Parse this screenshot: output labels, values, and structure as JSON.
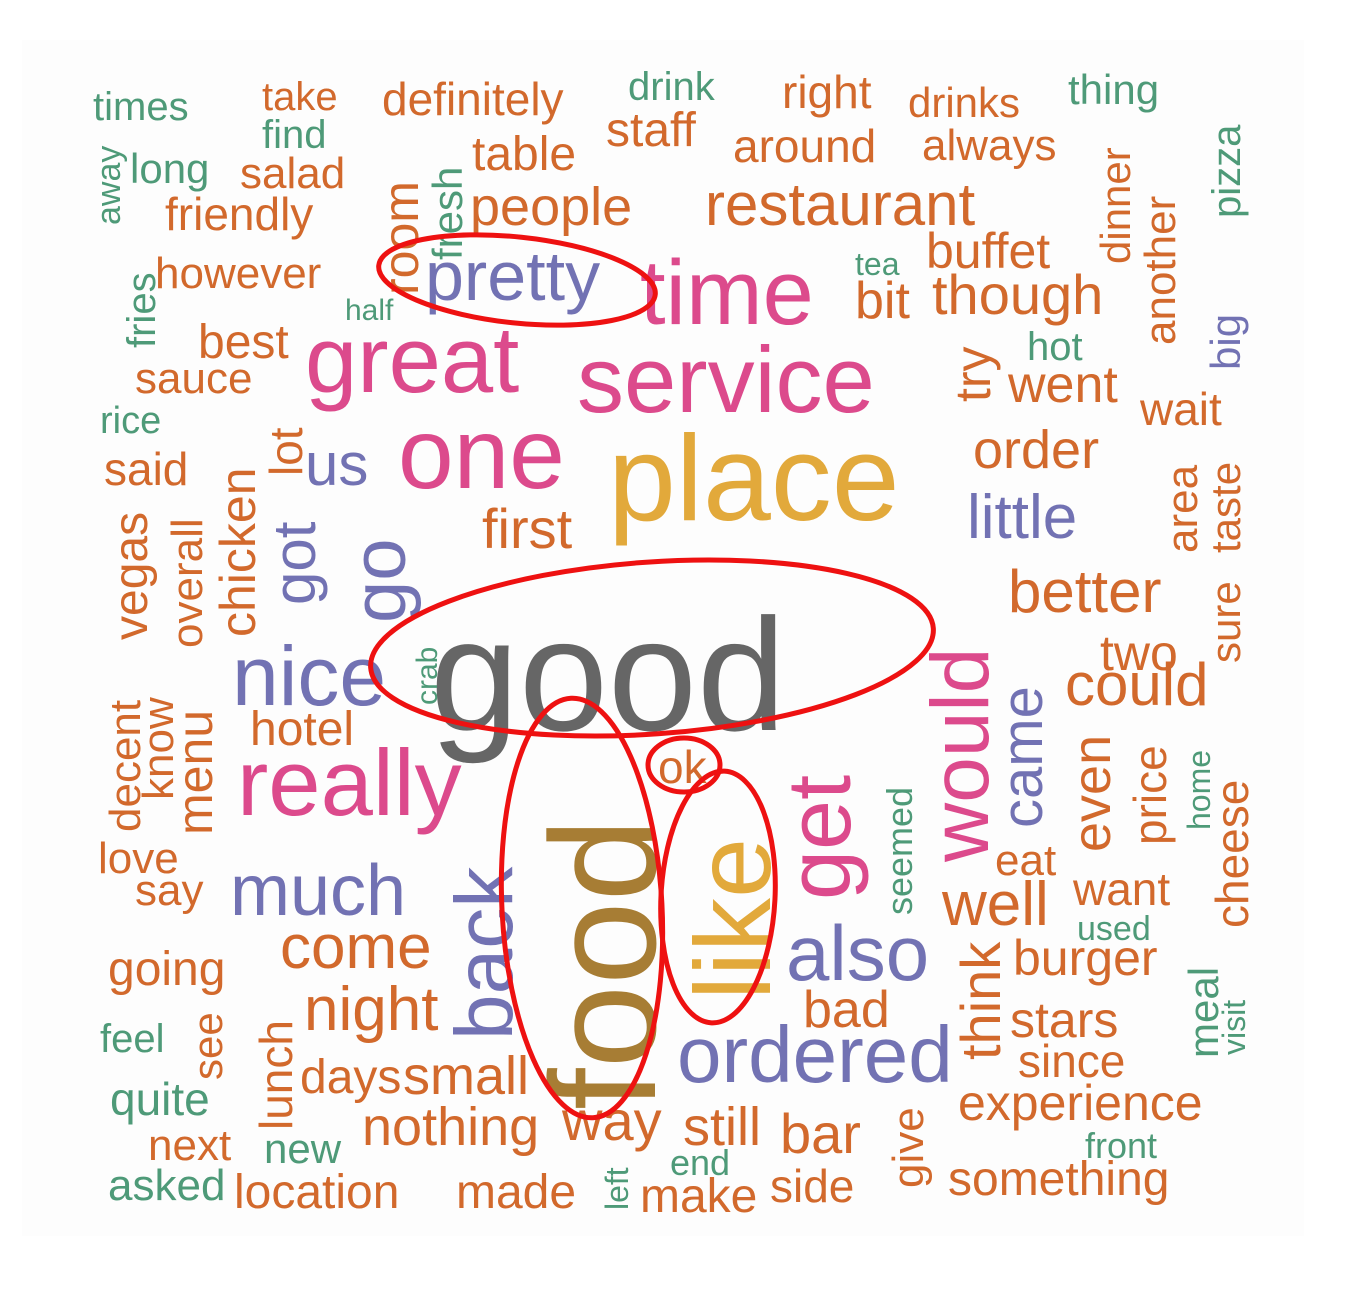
{
  "palette": {
    "orange": "#d2692c",
    "green": "#4e9a78",
    "purple": "#7272b3",
    "pink": "#dc4a8c",
    "gold": "#e2a93b",
    "gray": "#666666",
    "brown": "#a77d34",
    "highlight": "#ee1111"
  },
  "words": [
    {
      "text": "times",
      "color": "green"
    },
    {
      "text": "take",
      "color": "orange"
    },
    {
      "text": "definitely",
      "color": "orange"
    },
    {
      "text": "drink",
      "color": "green"
    },
    {
      "text": "right",
      "color": "orange"
    },
    {
      "text": "drinks",
      "color": "orange"
    },
    {
      "text": "thing",
      "color": "green"
    },
    {
      "text": "away",
      "color": "green"
    },
    {
      "text": "find",
      "color": "green"
    },
    {
      "text": "staff",
      "color": "orange"
    },
    {
      "text": "long",
      "color": "green"
    },
    {
      "text": "salad",
      "color": "orange"
    },
    {
      "text": "room",
      "color": "orange"
    },
    {
      "text": "fresh",
      "color": "green"
    },
    {
      "text": "table",
      "color": "orange"
    },
    {
      "text": "around",
      "color": "orange"
    },
    {
      "text": "always",
      "color": "orange"
    },
    {
      "text": "dinner",
      "color": "orange"
    },
    {
      "text": "pizza",
      "color": "green"
    },
    {
      "text": "friendly",
      "color": "orange"
    },
    {
      "text": "people",
      "color": "orange"
    },
    {
      "text": "restaurant",
      "color": "orange"
    },
    {
      "text": "another",
      "color": "orange"
    },
    {
      "text": "fries",
      "color": "green"
    },
    {
      "text": "however",
      "color": "orange"
    },
    {
      "text": "pretty",
      "color": "purple"
    },
    {
      "text": "time",
      "color": "pink"
    },
    {
      "text": "tea",
      "color": "green"
    },
    {
      "text": "buffet",
      "color": "orange"
    },
    {
      "text": "half",
      "color": "green"
    },
    {
      "text": "bit",
      "color": "orange"
    },
    {
      "text": "though",
      "color": "orange"
    },
    {
      "text": "big",
      "color": "purple"
    },
    {
      "text": "best",
      "color": "orange"
    },
    {
      "text": "try",
      "color": "orange"
    },
    {
      "text": "hot",
      "color": "green"
    },
    {
      "text": "sauce",
      "color": "orange"
    },
    {
      "text": "great",
      "color": "pink"
    },
    {
      "text": "service",
      "color": "pink"
    },
    {
      "text": "went",
      "color": "orange"
    },
    {
      "text": "wait",
      "color": "orange"
    },
    {
      "text": "rice",
      "color": "green"
    },
    {
      "text": "said",
      "color": "orange"
    },
    {
      "text": "lot",
      "color": "orange"
    },
    {
      "text": "chicken",
      "color": "orange"
    },
    {
      "text": "us",
      "color": "purple"
    },
    {
      "text": "one",
      "color": "pink"
    },
    {
      "text": "place",
      "color": "gold"
    },
    {
      "text": "order",
      "color": "orange"
    },
    {
      "text": "area",
      "color": "orange"
    },
    {
      "text": "taste",
      "color": "orange"
    },
    {
      "text": "vegas",
      "color": "orange"
    },
    {
      "text": "overall",
      "color": "orange"
    },
    {
      "text": "got",
      "color": "purple"
    },
    {
      "text": "go",
      "color": "purple"
    },
    {
      "text": "first",
      "color": "orange"
    },
    {
      "text": "little",
      "color": "purple"
    },
    {
      "text": "sure",
      "color": "orange"
    },
    {
      "text": "good",
      "color": "gray"
    },
    {
      "text": "would",
      "color": "pink"
    },
    {
      "text": "better",
      "color": "orange"
    },
    {
      "text": "two",
      "color": "orange"
    },
    {
      "text": "crab",
      "color": "green"
    },
    {
      "text": "nice",
      "color": "purple"
    },
    {
      "text": "could",
      "color": "orange"
    },
    {
      "text": "decent",
      "color": "orange"
    },
    {
      "text": "know",
      "color": "orange"
    },
    {
      "text": "menu",
      "color": "orange"
    },
    {
      "text": "hotel",
      "color": "orange"
    },
    {
      "text": "came",
      "color": "purple"
    },
    {
      "text": "even",
      "color": "orange"
    },
    {
      "text": "price",
      "color": "orange"
    },
    {
      "text": "home",
      "color": "green"
    },
    {
      "text": "cheese",
      "color": "orange"
    },
    {
      "text": "really",
      "color": "pink"
    },
    {
      "text": "ok",
      "color": "orange"
    },
    {
      "text": "get",
      "color": "pink"
    },
    {
      "text": "seemed",
      "color": "green"
    },
    {
      "text": "food",
      "color": "brown"
    },
    {
      "text": "like",
      "color": "gold"
    },
    {
      "text": "love",
      "color": "orange"
    },
    {
      "text": "eat",
      "color": "orange"
    },
    {
      "text": "say",
      "color": "orange"
    },
    {
      "text": "much",
      "color": "purple"
    },
    {
      "text": "back",
      "color": "purple"
    },
    {
      "text": "well",
      "color": "orange"
    },
    {
      "text": "want",
      "color": "orange"
    },
    {
      "text": "used",
      "color": "green"
    },
    {
      "text": "come",
      "color": "orange"
    },
    {
      "text": "also",
      "color": "purple"
    },
    {
      "text": "think",
      "color": "orange"
    },
    {
      "text": "burger",
      "color": "orange"
    },
    {
      "text": "going",
      "color": "orange"
    },
    {
      "text": "meal",
      "color": "green"
    },
    {
      "text": "visit",
      "color": "green"
    },
    {
      "text": "night",
      "color": "orange"
    },
    {
      "text": "bad",
      "color": "orange"
    },
    {
      "text": "stars",
      "color": "orange"
    },
    {
      "text": "feel",
      "color": "green"
    },
    {
      "text": "see",
      "color": "orange"
    },
    {
      "text": "lunch",
      "color": "orange"
    },
    {
      "text": "ordered",
      "color": "purple"
    },
    {
      "text": "since",
      "color": "orange"
    },
    {
      "text": "days",
      "color": "orange"
    },
    {
      "text": "small",
      "color": "orange"
    },
    {
      "text": "quite",
      "color": "green"
    },
    {
      "text": "give",
      "color": "orange"
    },
    {
      "text": "experience",
      "color": "orange"
    },
    {
      "text": "next",
      "color": "orange"
    },
    {
      "text": "new",
      "color": "green"
    },
    {
      "text": "nothing",
      "color": "orange"
    },
    {
      "text": "way",
      "color": "orange"
    },
    {
      "text": "still",
      "color": "orange"
    },
    {
      "text": "bar",
      "color": "orange"
    },
    {
      "text": "front",
      "color": "green"
    },
    {
      "text": "end",
      "color": "green"
    },
    {
      "text": "left",
      "color": "green"
    },
    {
      "text": "asked",
      "color": "green"
    },
    {
      "text": "location",
      "color": "orange"
    },
    {
      "text": "made",
      "color": "orange"
    },
    {
      "text": "make",
      "color": "orange"
    },
    {
      "text": "side",
      "color": "orange"
    },
    {
      "text": "something",
      "color": "orange"
    }
  ],
  "highlighted_words": [
    "pretty",
    "good",
    "food",
    "ok",
    "like"
  ]
}
